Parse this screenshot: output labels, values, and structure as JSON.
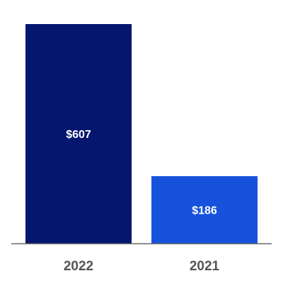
{
  "chart_data": {
    "type": "bar",
    "categories": [
      "2022",
      "2021"
    ],
    "values": [
      607,
      186
    ],
    "value_labels": [
      "$607",
      "$186"
    ],
    "colors": [
      "#05166e",
      "#1652dc"
    ]
  }
}
